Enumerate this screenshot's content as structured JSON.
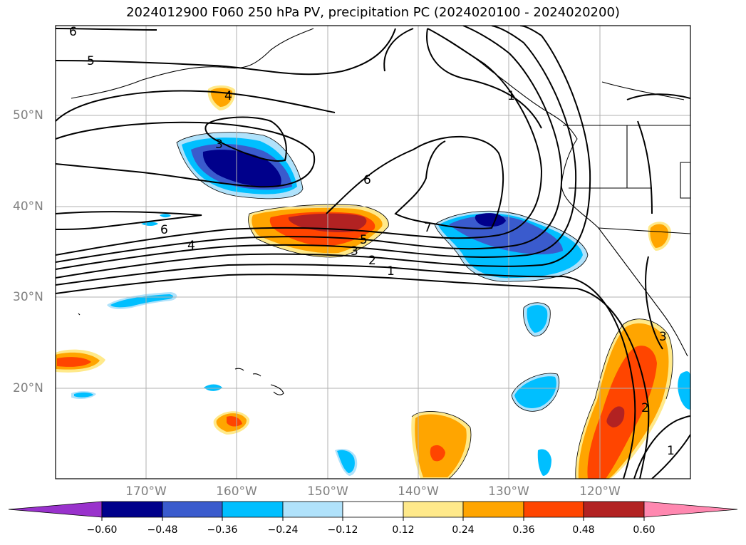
{
  "title": "2024012900 F060 250 hPa PV, precipitation PC (2024020100 - 2024020200)",
  "lat_labels": [
    "50°N",
    "40°N",
    "30°N",
    "20°N"
  ],
  "lon_labels": [
    "170°W",
    "160°W",
    "150°W",
    "140°W",
    "130°W",
    "120°W"
  ],
  "contour_labels": [
    "6",
    "5",
    "4",
    "3",
    "6",
    "7",
    "6",
    "4",
    "5",
    "3",
    "2",
    "1",
    "1",
    "3",
    "2",
    "1"
  ],
  "colorbar": {
    "ticks": [
      "−0.60",
      "−0.48",
      "−0.36",
      "−0.24",
      "−0.12",
      "0.12",
      "0.24",
      "0.36",
      "0.48",
      "0.60"
    ],
    "colors": [
      "#9932cc",
      "#00008b",
      "#3a5bcd",
      "#00bfff",
      "#b0e2fb",
      "#ffffff",
      "#ffe98a",
      "#ffa500",
      "#ff4500",
      "#b22222",
      "#ff88b0"
    ]
  }
}
